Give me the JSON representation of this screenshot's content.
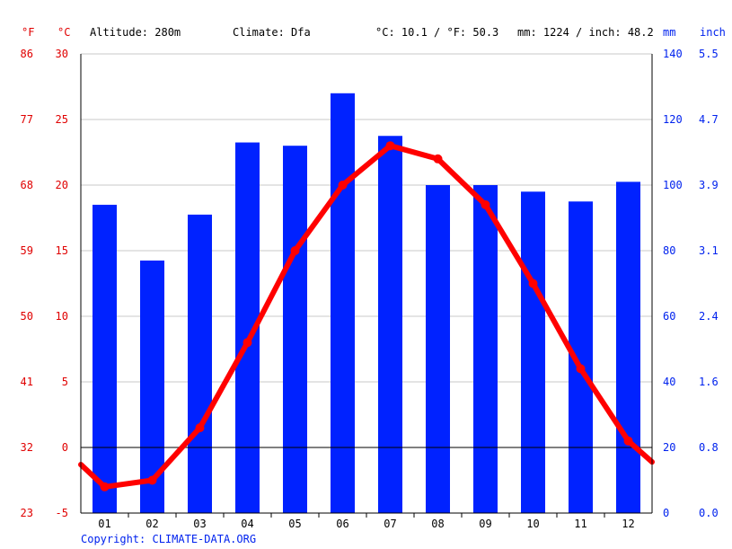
{
  "header": {
    "f_unit": "°F",
    "c_unit": "°C",
    "altitude": "Altitude: 280m",
    "climate": "Climate: Dfa",
    "temp_avg": "°C: 10.1 / °F: 50.3",
    "precip_total": "mm: 1224 / inch: 48.2",
    "mm_unit": "mm",
    "inch_unit": "inch"
  },
  "copyright": "Copyright: CLIMATE-DATA.ORG",
  "colors": {
    "temperature": "#ff0000",
    "precipitation": "#0022ff",
    "axis_red": "#e00000",
    "axis_blue": "#0022ee"
  },
  "chart_data": {
    "type": "bar",
    "categories": [
      "01",
      "02",
      "03",
      "04",
      "05",
      "06",
      "07",
      "08",
      "09",
      "10",
      "11",
      "12"
    ],
    "series": [
      {
        "type": "bar",
        "unit": "mm",
        "axis": "right",
        "values": [
          94,
          77,
          91,
          113,
          112,
          128,
          115,
          100,
          100,
          98,
          95,
          101
        ]
      },
      {
        "type": "line",
        "unit": "°C",
        "axis": "left",
        "values": [
          -3.0,
          -2.5,
          1.5,
          8.0,
          15.0,
          20.0,
          23.0,
          22.0,
          18.5,
          12.5,
          6.0,
          0.5
        ],
        "start_value": -1.3,
        "end_value": -1.1
      }
    ],
    "y_left_celsius": {
      "ticks": [
        30,
        25,
        20,
        15,
        10,
        5,
        0,
        -5
      ],
      "range": [
        -5,
        30
      ]
    },
    "y_left_fahrenheit": {
      "ticks": [
        "86",
        "77",
        "68",
        "59",
        "50",
        "41",
        "32",
        "23"
      ]
    },
    "y_right_mm": {
      "ticks": [
        140,
        120,
        100,
        80,
        60,
        40,
        20,
        0
      ],
      "range": [
        0,
        140
      ]
    },
    "y_right_inch": {
      "ticks": [
        "5.5",
        "4.7",
        "3.9",
        "3.1",
        "2.4",
        "1.6",
        "0.8",
        "0.0"
      ]
    },
    "grid": true,
    "zero_line": 0
  }
}
